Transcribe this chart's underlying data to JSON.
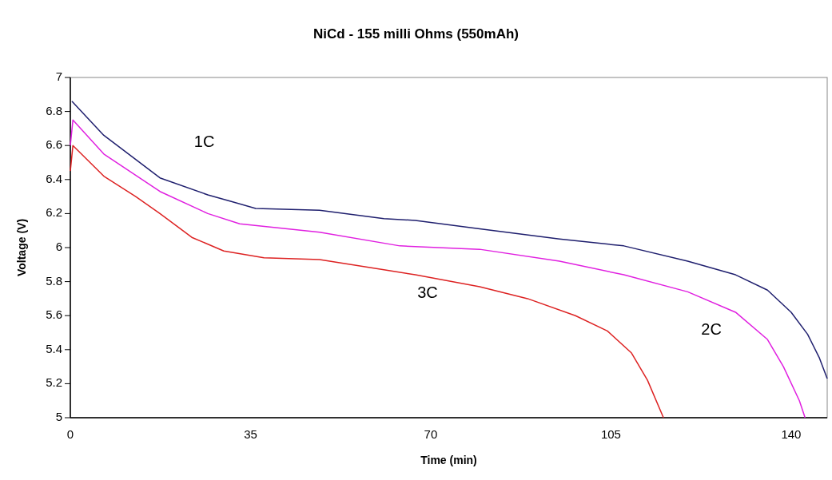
{
  "chart_data": {
    "type": "line",
    "title": "NiCd - 155 milli Ohms (550mAh)",
    "xlabel": "Time (min)",
    "ylabel": "Voltage (V)",
    "xlim": [
      0,
      147
    ],
    "xticks": [
      0,
      35,
      70,
      105,
      140
    ],
    "ylim": [
      5,
      7
    ],
    "yticks": [
      5,
      5.2,
      5.4,
      5.6,
      5.8,
      6,
      6.2,
      6.4,
      6.6,
      6.8,
      7
    ],
    "grid": false,
    "marker": "none",
    "line_style": "solid",
    "series": [
      {
        "name": "1C",
        "color": "#1f1f6e",
        "x": [
          0.3,
          6.5,
          17.4,
          26.7,
          31.4,
          36,
          48.4,
          60.9,
          67,
          79.5,
          95,
          107.5,
          119.9,
          129.2,
          135.4,
          140,
          143.2,
          145.5,
          147
        ],
        "values": [
          6.86,
          6.66,
          6.41,
          6.31,
          6.27,
          6.23,
          6.22,
          6.17,
          6.16,
          6.11,
          6.05,
          6.01,
          5.92,
          5.84,
          5.75,
          5.62,
          5.49,
          5.35,
          5.23
        ]
      },
      {
        "name": "2C",
        "color": "#e020e0",
        "x": [
          0,
          0.5,
          6.5,
          17.4,
          26.7,
          32.9,
          48.4,
          64,
          79.5,
          95,
          107.5,
          119.9,
          129.2,
          135.4,
          138.5,
          141.6,
          142.7
        ],
        "values": [
          6.6,
          6.75,
          6.55,
          6.33,
          6.2,
          6.14,
          6.09,
          6.01,
          5.99,
          5.92,
          5.84,
          5.74,
          5.62,
          5.46,
          5.3,
          5.1,
          5
        ]
      },
      {
        "name": "3C",
        "color": "#dd2222",
        "x": [
          0,
          0.5,
          6.5,
          12.7,
          17.4,
          23.6,
          29.8,
          37.6,
          48.4,
          60.9,
          67,
          79.5,
          88.8,
          98.1,
          104.3,
          109,
          112.1,
          115.2
        ],
        "values": [
          6.45,
          6.6,
          6.42,
          6.3,
          6.2,
          6.06,
          5.98,
          5.94,
          5.93,
          5.87,
          5.84,
          5.77,
          5.7,
          5.6,
          5.51,
          5.38,
          5.22,
          5
        ]
      }
    ]
  }
}
